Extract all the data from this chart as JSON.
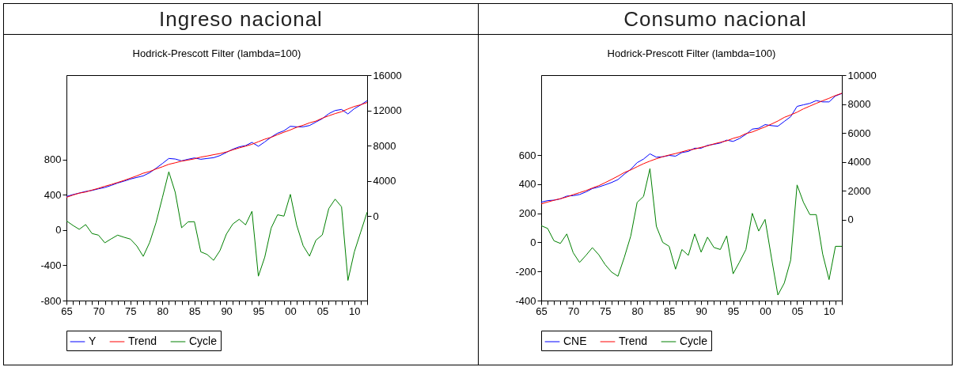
{
  "chart_data": [
    {
      "type": "line",
      "title": "Ingreso nacional",
      "subtitle": "Hodrick-Prescott Filter (lambda=100)",
      "x": [
        1965,
        1966,
        1967,
        1968,
        1969,
        1970,
        1971,
        1972,
        1973,
        1974,
        1975,
        1976,
        1977,
        1978,
        1979,
        1980,
        1981,
        1982,
        1983,
        1984,
        1985,
        1986,
        1987,
        1988,
        1989,
        1990,
        1991,
        1992,
        1993,
        1994,
        1995,
        1996,
        1997,
        1998,
        1999,
        2000,
        2001,
        2002,
        2003,
        2004,
        2005,
        2006,
        2007,
        2008,
        2009,
        2010,
        2011,
        2012
      ],
      "series": [
        {
          "name": "Y",
          "color": "#0000ff",
          "axis": "y2",
          "values": [
            2240,
            2450,
            2630,
            2810,
            2930,
            3110,
            3260,
            3500,
            3770,
            3980,
            4220,
            4400,
            4580,
            4930,
            5440,
            5980,
            6550,
            6490,
            6280,
            6460,
            6610,
            6460,
            6550,
            6640,
            6880,
            7240,
            7600,
            7870,
            8010,
            8370,
            7930,
            8430,
            8970,
            9420,
            9690,
            10200,
            10140,
            10140,
            10290,
            10680,
            11070,
            11630,
            11990,
            12110,
            11600,
            12200,
            12620,
            13100
          ]
        },
        {
          "name": "Trend",
          "color": "#ff0000",
          "axis": "y2",
          "values": [
            2140,
            2400,
            2620,
            2750,
            2970,
            3170,
            3400,
            3600,
            3830,
            4060,
            4320,
            4580,
            4880,
            5070,
            5360,
            5610,
            5890,
            6060,
            6250,
            6370,
            6510,
            6710,
            6830,
            6980,
            7110,
            7290,
            7530,
            7750,
            7950,
            8160,
            8450,
            8740,
            8950,
            9250,
            9530,
            9790,
            10090,
            10320,
            10590,
            10790,
            11120,
            11390,
            11640,
            11850,
            12170,
            12450,
            12640,
            12900
          ]
        },
        {
          "name": "Cycle",
          "color": "#008000",
          "values": [
            105,
            54,
            9,
            63,
            -39,
            -57,
            -144,
            -99,
            -57,
            -81,
            -102,
            -180,
            -298,
            -141,
            84,
            370,
            662,
            430,
            27,
            93,
            96,
            -247,
            -277,
            -343,
            -232,
            -45,
            69,
            123,
            60,
            214,
            -523,
            -307,
            24,
            174,
            159,
            406,
            54,
            -177,
            -295,
            -114,
            -54,
            244,
            352,
            265,
            -571,
            -247,
            -21,
            204
          ]
        }
      ],
      "xlim": [
        1965,
        2012
      ],
      "xticks": [
        {
          "value": 1965,
          "label": "65"
        },
        {
          "value": 1966,
          "label": null
        },
        {
          "value": 1967,
          "label": null
        },
        {
          "value": 1968,
          "label": null
        },
        {
          "value": 1969,
          "label": null
        },
        {
          "value": 1970,
          "label": "70"
        },
        {
          "value": 1971,
          "label": null
        },
        {
          "value": 1972,
          "label": null
        },
        {
          "value": 1973,
          "label": null
        },
        {
          "value": 1974,
          "label": null
        },
        {
          "value": 1975,
          "label": "75"
        },
        {
          "value": 1976,
          "label": null
        },
        {
          "value": 1977,
          "label": null
        },
        {
          "value": 1978,
          "label": null
        },
        {
          "value": 1979,
          "label": null
        },
        {
          "value": 1980,
          "label": "80"
        },
        {
          "value": 1981,
          "label": null
        },
        {
          "value": 1982,
          "label": null
        },
        {
          "value": 1983,
          "label": null
        },
        {
          "value": 1984,
          "label": null
        },
        {
          "value": 1985,
          "label": "85"
        },
        {
          "value": 1986,
          "label": null
        },
        {
          "value": 1987,
          "label": null
        },
        {
          "value": 1988,
          "label": null
        },
        {
          "value": 1989,
          "label": null
        },
        {
          "value": 1990,
          "label": "90"
        },
        {
          "value": 1991,
          "label": null
        },
        {
          "value": 1992,
          "label": null
        },
        {
          "value": 1993,
          "label": null
        },
        {
          "value": 1994,
          "label": null
        },
        {
          "value": 1995,
          "label": "95"
        },
        {
          "value": 1996,
          "label": null
        },
        {
          "value": 1997,
          "label": null
        },
        {
          "value": 1998,
          "label": null
        },
        {
          "value": 1999,
          "label": null
        },
        {
          "value": 2000,
          "label": "00"
        },
        {
          "value": 2001,
          "label": null
        },
        {
          "value": 2002,
          "label": null
        },
        {
          "value": 2003,
          "label": null
        },
        {
          "value": 2004,
          "label": null
        },
        {
          "value": 2005,
          "label": "05"
        },
        {
          "value": 2006,
          "label": null
        },
        {
          "value": 2007,
          "label": null
        },
        {
          "value": 2008,
          "label": null
        },
        {
          "value": 2009,
          "label": null
        },
        {
          "value": 2010,
          "label": "10"
        },
        {
          "value": 2011,
          "label": null
        },
        {
          "value": 2012,
          "label": null
        }
      ],
      "ylim": [
        -800,
        1760
      ],
      "yticks": [
        -800,
        -400,
        0,
        400,
        800
      ],
      "y2lim": [
        -9560,
        16000
      ],
      "y2ticks": [
        0,
        4000,
        8000,
        12000,
        16000
      ],
      "grid": false,
      "legend": "bottom"
    },
    {
      "type": "line",
      "title": "Consumo nacional",
      "subtitle": "Hodrick-Prescott Filter (lambda=100)",
      "x": [
        1965,
        1966,
        1967,
        1968,
        1969,
        1970,
        1971,
        1972,
        1973,
        1974,
        1975,
        1976,
        1977,
        1978,
        1979,
        1980,
        1981,
        1982,
        1983,
        1984,
        1985,
        1986,
        1987,
        1988,
        1989,
        1990,
        1991,
        1992,
        1993,
        1994,
        1995,
        1996,
        1997,
        1998,
        1999,
        2000,
        2001,
        2002,
        2003,
        2004,
        2005,
        2006,
        2007,
        2008,
        2009,
        2010,
        2011,
        2012
      ],
      "series": [
        {
          "name": "CNE",
          "color": "#0000ff",
          "axis": "y2",
          "values": [
            1220,
            1330,
            1360,
            1450,
            1640,
            1670,
            1750,
            1930,
            2160,
            2270,
            2420,
            2580,
            2780,
            3160,
            3490,
            3950,
            4200,
            4560,
            4330,
            4360,
            4450,
            4400,
            4650,
            4730,
            4950,
            4950,
            5150,
            5220,
            5310,
            5510,
            5420,
            5620,
            5910,
            6270,
            6330,
            6580,
            6510,
            6470,
            6800,
            7130,
            7840,
            7950,
            8050,
            8240,
            8150,
            8150,
            8560,
            8730
          ]
        },
        {
          "name": "Trend",
          "color": "#ff0000",
          "axis": "y2",
          "values": [
            1100,
            1230,
            1350,
            1460,
            1580,
            1740,
            1880,
            2020,
            2200,
            2360,
            2570,
            2790,
            3020,
            3270,
            3450,
            3670,
            3880,
            4060,
            4220,
            4360,
            4480,
            4580,
            4700,
            4820,
            4890,
            5010,
            5110,
            5250,
            5360,
            5460,
            5630,
            5750,
            5960,
            6070,
            6250,
            6420,
            6620,
            6830,
            7080,
            7250,
            7440,
            7670,
            7860,
            8050,
            8230,
            8400,
            8590,
            8750
          ]
        },
        {
          "name": "Cycle",
          "color": "#008000",
          "values": [
            115,
            96,
            11,
            -7,
            58,
            -71,
            -138,
            -89,
            -36,
            -85,
            -153,
            -204,
            -233,
            -102,
            44,
            275,
            316,
            507,
            111,
            0,
            -27,
            -184,
            -49,
            -89,
            58,
            -67,
            36,
            -35,
            -49,
            45,
            -216,
            -135,
            -49,
            200,
            78,
            158,
            -107,
            -362,
            -280,
            -122,
            395,
            275,
            191,
            191,
            -80,
            -256,
            -27,
            -27
          ]
        }
      ],
      "xlim": [
        1965,
        2012
      ],
      "xticks": [
        {
          "value": 1965,
          "label": "65"
        },
        {
          "value": 1966,
          "label": null
        },
        {
          "value": 1967,
          "label": null
        },
        {
          "value": 1968,
          "label": null
        },
        {
          "value": 1969,
          "label": null
        },
        {
          "value": 1970,
          "label": "70"
        },
        {
          "value": 1971,
          "label": null
        },
        {
          "value": 1972,
          "label": null
        },
        {
          "value": 1973,
          "label": null
        },
        {
          "value": 1974,
          "label": null
        },
        {
          "value": 1975,
          "label": "75"
        },
        {
          "value": 1976,
          "label": null
        },
        {
          "value": 1977,
          "label": null
        },
        {
          "value": 1978,
          "label": null
        },
        {
          "value": 1979,
          "label": null
        },
        {
          "value": 1980,
          "label": "80"
        },
        {
          "value": 1981,
          "label": null
        },
        {
          "value": 1982,
          "label": null
        },
        {
          "value": 1983,
          "label": null
        },
        {
          "value": 1984,
          "label": null
        },
        {
          "value": 1985,
          "label": "85"
        },
        {
          "value": 1986,
          "label": null
        },
        {
          "value": 1987,
          "label": null
        },
        {
          "value": 1988,
          "label": null
        },
        {
          "value": 1989,
          "label": null
        },
        {
          "value": 1990,
          "label": "90"
        },
        {
          "value": 1991,
          "label": null
        },
        {
          "value": 1992,
          "label": null
        },
        {
          "value": 1993,
          "label": null
        },
        {
          "value": 1994,
          "label": null
        },
        {
          "value": 1995,
          "label": "95"
        },
        {
          "value": 1996,
          "label": null
        },
        {
          "value": 1997,
          "label": null
        },
        {
          "value": 1998,
          "label": null
        },
        {
          "value": 1999,
          "label": null
        },
        {
          "value": 2000,
          "label": "00"
        },
        {
          "value": 2001,
          "label": null
        },
        {
          "value": 2002,
          "label": null
        },
        {
          "value": 2003,
          "label": null
        },
        {
          "value": 2004,
          "label": null
        },
        {
          "value": 2005,
          "label": "05"
        },
        {
          "value": 2006,
          "label": null
        },
        {
          "value": 2007,
          "label": null
        },
        {
          "value": 2008,
          "label": null
        },
        {
          "value": 2009,
          "label": null
        },
        {
          "value": 2010,
          "label": "10"
        },
        {
          "value": 2011,
          "label": null
        },
        {
          "value": 2012,
          "label": null
        }
      ],
      "ylim": [
        -400,
        1150
      ],
      "yticks": [
        -400,
        -200,
        0,
        200,
        400,
        600
      ],
      "y2lim": [
        -5580,
        10000
      ],
      "y2ticks": [
        0,
        2000,
        4000,
        6000,
        8000,
        10000
      ],
      "grid": false,
      "legend": "bottom"
    }
  ]
}
